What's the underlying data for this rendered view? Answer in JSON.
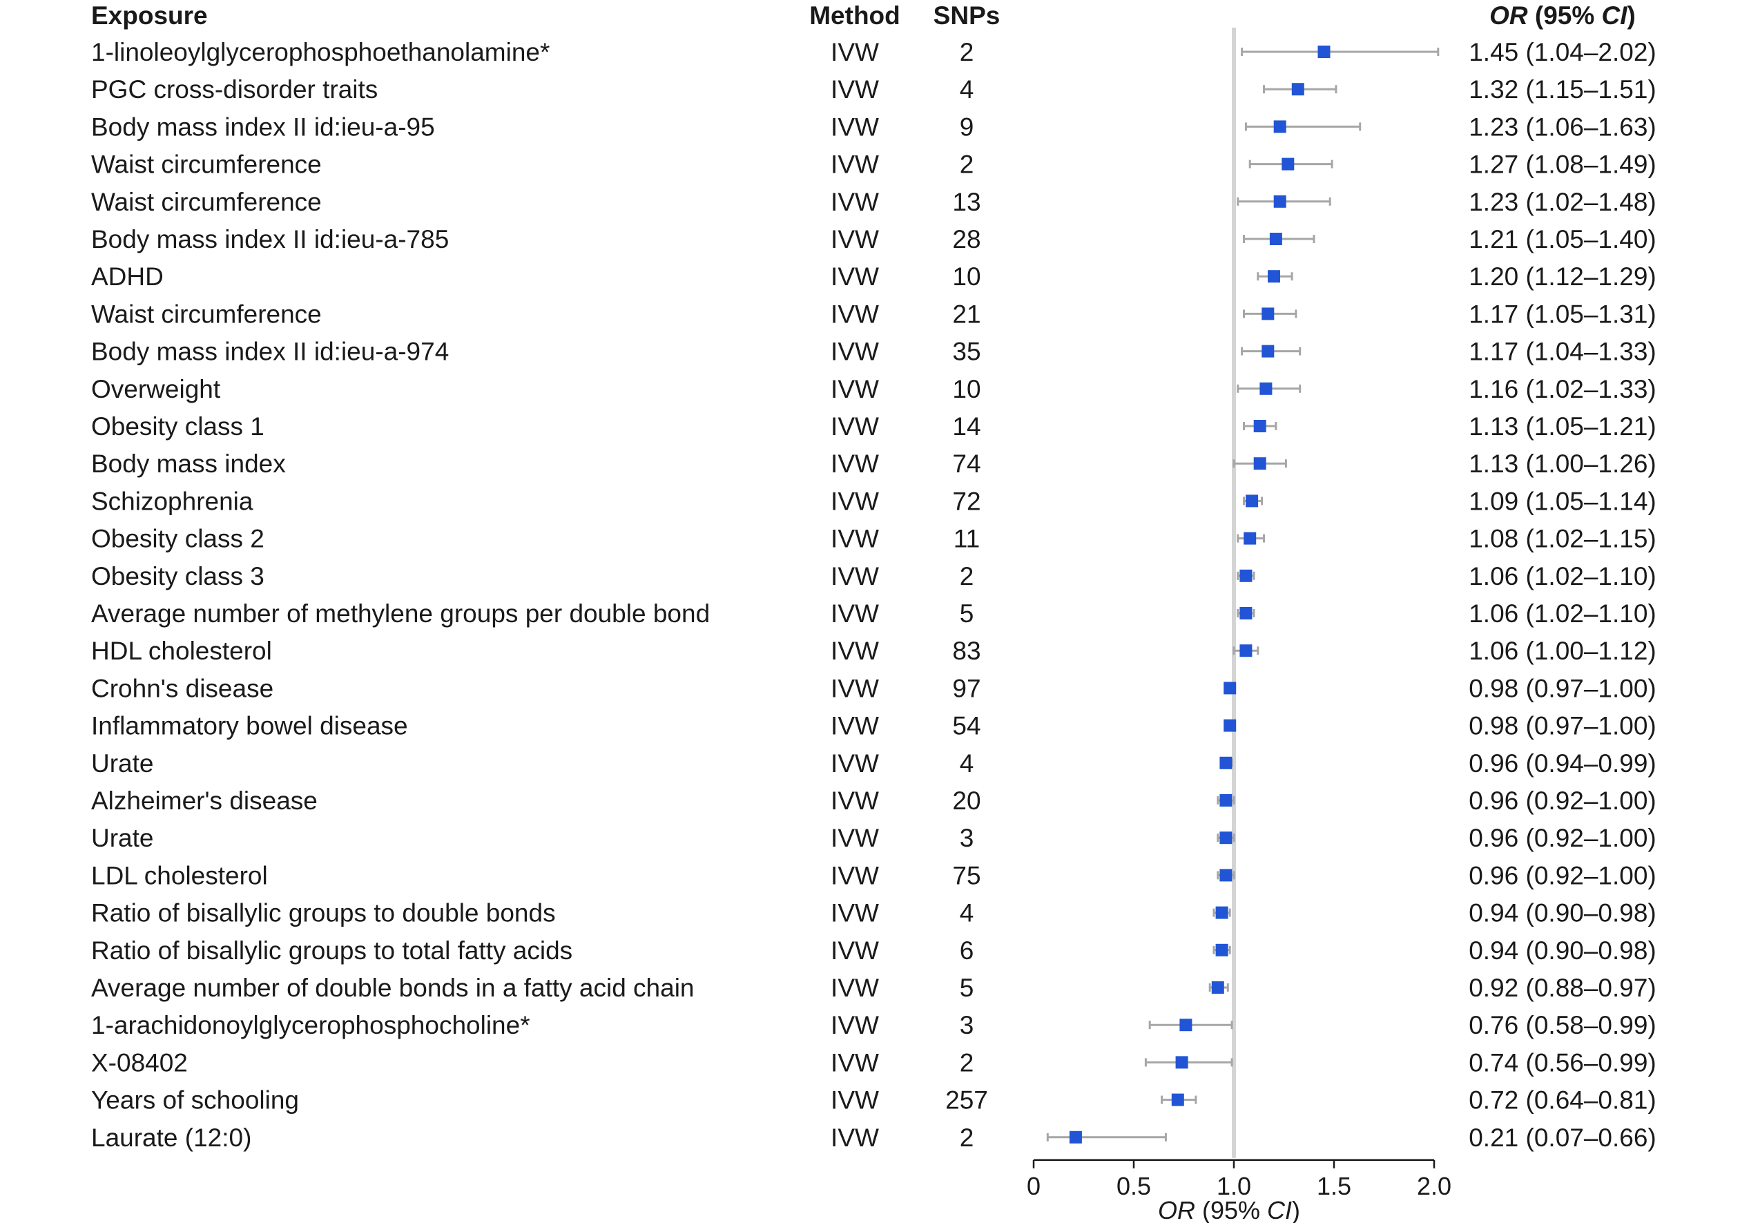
{
  "chart_data": {
    "type": "forest",
    "headers": {
      "exposure": "Exposure",
      "method": "Method",
      "snps": "SNPs",
      "or_label_italic": "OR",
      "or_ci_open": " (95% ",
      "or_ci_italic": "CI",
      "or_ci_close": ")"
    },
    "xlabel": {
      "italic": "OR",
      "open": " (95% ",
      "ci_italic": "CI",
      "close": ")"
    },
    "xlim": [
      0,
      2.0
    ],
    "xticks": [
      0,
      0.5,
      1.0,
      1.5,
      2.0
    ],
    "xtick_labels": [
      "0",
      "0.5",
      "1.0",
      "1.5",
      "2.0"
    ],
    "reference_line": 1.0,
    "colors": {
      "marker": "#2155d6",
      "whisker": "#a6a6a6",
      "reference": "#d4d4d4",
      "axis": "#1a1a1a"
    },
    "rows": [
      {
        "exposure": "1-linoleoylglycerophosphoethanolamine*",
        "method": "IVW",
        "snps": "2",
        "or": 1.45,
        "lo": 1.04,
        "hi": 2.02,
        "label": "1.45 (1.04–2.02)"
      },
      {
        "exposure": "PGC cross-disorder traits",
        "method": "IVW",
        "snps": "4",
        "or": 1.32,
        "lo": 1.15,
        "hi": 1.51,
        "label": "1.32 (1.15–1.51)"
      },
      {
        "exposure": "Body mass index II id:ieu-a-95",
        "method": "IVW",
        "snps": "9",
        "or": 1.23,
        "lo": 1.06,
        "hi": 1.63,
        "label": "1.23 (1.06–1.63)"
      },
      {
        "exposure": "Waist circumference",
        "method": "IVW",
        "snps": "2",
        "or": 1.27,
        "lo": 1.08,
        "hi": 1.49,
        "label": "1.27 (1.08–1.49)"
      },
      {
        "exposure": "Waist circumference",
        "method": "IVW",
        "snps": "13",
        "or": 1.23,
        "lo": 1.02,
        "hi": 1.48,
        "label": "1.23 (1.02–1.48)"
      },
      {
        "exposure": "Body mass index II id:ieu-a-785",
        "method": "IVW",
        "snps": "28",
        "or": 1.21,
        "lo": 1.05,
        "hi": 1.4,
        "label": "1.21 (1.05–1.40)"
      },
      {
        "exposure": "ADHD",
        "method": "IVW",
        "snps": "10",
        "or": 1.2,
        "lo": 1.12,
        "hi": 1.29,
        "label": "1.20 (1.12–1.29)"
      },
      {
        "exposure": "Waist circumference",
        "method": "IVW",
        "snps": "21",
        "or": 1.17,
        "lo": 1.05,
        "hi": 1.31,
        "label": "1.17 (1.05–1.31)"
      },
      {
        "exposure": "Body mass index II id:ieu-a-974",
        "method": "IVW",
        "snps": "35",
        "or": 1.17,
        "lo": 1.04,
        "hi": 1.33,
        "label": "1.17 (1.04–1.33)"
      },
      {
        "exposure": "Overweight",
        "method": "IVW",
        "snps": "10",
        "or": 1.16,
        "lo": 1.02,
        "hi": 1.33,
        "label": "1.16 (1.02–1.33)"
      },
      {
        "exposure": "Obesity class 1",
        "method": "IVW",
        "snps": "14",
        "or": 1.13,
        "lo": 1.05,
        "hi": 1.21,
        "label": "1.13 (1.05–1.21)"
      },
      {
        "exposure": "Body mass index",
        "method": "IVW",
        "snps": "74",
        "or": 1.13,
        "lo": 1.0,
        "hi": 1.26,
        "label": "1.13 (1.00–1.26)"
      },
      {
        "exposure": "Schizophrenia",
        "method": "IVW",
        "snps": "72",
        "or": 1.09,
        "lo": 1.05,
        "hi": 1.14,
        "label": "1.09 (1.05–1.14)"
      },
      {
        "exposure": "Obesity class 2",
        "method": "IVW",
        "snps": "11",
        "or": 1.08,
        "lo": 1.02,
        "hi": 1.15,
        "label": "1.08 (1.02–1.15)"
      },
      {
        "exposure": "Obesity class 3",
        "method": "IVW",
        "snps": "2",
        "or": 1.06,
        "lo": 1.02,
        "hi": 1.1,
        "label": "1.06 (1.02–1.10)"
      },
      {
        "exposure": "Average number of methylene groups per double bond",
        "method": "IVW",
        "snps": "5",
        "or": 1.06,
        "lo": 1.02,
        "hi": 1.1,
        "label": "1.06 (1.02–1.10)"
      },
      {
        "exposure": "HDL cholesterol",
        "method": "IVW",
        "snps": "83",
        "or": 1.06,
        "lo": 1.0,
        "hi": 1.12,
        "label": "1.06 (1.00–1.12)"
      },
      {
        "exposure": "Crohn's disease",
        "method": "IVW",
        "snps": "97",
        "or": 0.98,
        "lo": 0.97,
        "hi": 1.0,
        "label": "0.98 (0.97–1.00)"
      },
      {
        "exposure": "Inflammatory bowel disease",
        "method": "IVW",
        "snps": "54",
        "or": 0.98,
        "lo": 0.97,
        "hi": 1.0,
        "label": "0.98 (0.97–1.00)"
      },
      {
        "exposure": "Urate",
        "method": "IVW",
        "snps": "4",
        "or": 0.96,
        "lo": 0.94,
        "hi": 0.99,
        "label": "0.96 (0.94–0.99)"
      },
      {
        "exposure": "Alzheimer's disease",
        "method": "IVW",
        "snps": "20",
        "or": 0.96,
        "lo": 0.92,
        "hi": 1.0,
        "label": "0.96 (0.92–1.00)"
      },
      {
        "exposure": "Urate",
        "method": "IVW",
        "snps": "3",
        "or": 0.96,
        "lo": 0.92,
        "hi": 1.0,
        "label": "0.96 (0.92–1.00)"
      },
      {
        "exposure": "LDL cholesterol",
        "method": "IVW",
        "snps": "75",
        "or": 0.96,
        "lo": 0.92,
        "hi": 1.0,
        "label": "0.96 (0.92–1.00)"
      },
      {
        "exposure": "Ratio of bisallylic groups to double bonds",
        "method": "IVW",
        "snps": "4",
        "or": 0.94,
        "lo": 0.9,
        "hi": 0.98,
        "label": "0.94 (0.90–0.98)"
      },
      {
        "exposure": "Ratio of bisallylic groups to total fatty acids",
        "method": "IVW",
        "snps": "6",
        "or": 0.94,
        "lo": 0.9,
        "hi": 0.98,
        "label": "0.94 (0.90–0.98)"
      },
      {
        "exposure": "Average number of double bonds in a fatty acid chain",
        "method": "IVW",
        "snps": "5",
        "or": 0.92,
        "lo": 0.88,
        "hi": 0.97,
        "label": "0.92 (0.88–0.97)"
      },
      {
        "exposure": "1-arachidonoylglycerophosphocholine*",
        "method": "IVW",
        "snps": "3",
        "or": 0.76,
        "lo": 0.58,
        "hi": 0.99,
        "label": "0.76 (0.58–0.99)"
      },
      {
        "exposure": "X-08402",
        "method": "IVW",
        "snps": "2",
        "or": 0.74,
        "lo": 0.56,
        "hi": 0.99,
        "label": "0.74 (0.56–0.99)"
      },
      {
        "exposure": "Years of schooling",
        "method": "IVW",
        "snps": "257",
        "or": 0.72,
        "lo": 0.64,
        "hi": 0.81,
        "label": "0.72 (0.64–0.81)"
      },
      {
        "exposure": "Laurate (12:0)",
        "method": "IVW",
        "snps": "2",
        "or": 0.21,
        "lo": 0.07,
        "hi": 0.66,
        "label": "0.21 (0.07–0.66)"
      }
    ]
  }
}
